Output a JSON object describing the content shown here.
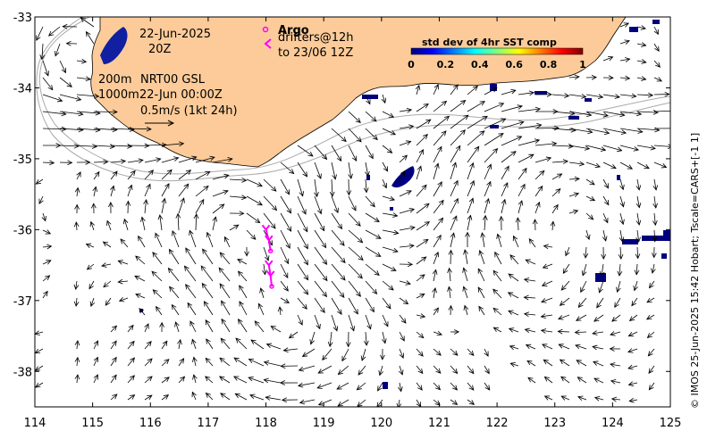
{
  "map": {
    "lon_range": [
      114,
      125
    ],
    "lat_range": [
      -38.5,
      -33
    ],
    "x_ticks": [
      "114",
      "115",
      "116",
      "117",
      "118",
      "119",
      "120",
      "121",
      "122",
      "123",
      "124",
      "125"
    ],
    "y_ticks": [
      "-33",
      "-34",
      "-35",
      "-36",
      "-37",
      "-38"
    ],
    "land_color": "#fccb99",
    "ocean_color": "#ffffff",
    "contour_color": "#aaaaaa",
    "argo_color": "#ff00ff"
  },
  "annotations": {
    "date": "22-Jun-2025",
    "time": "20Z",
    "depth_200": "200m",
    "product": "NRT00 GSL",
    "depth_1000": "1000m",
    "valid_time": "22-Jun 00:00Z",
    "scale_label": "0.5m/s (1kt 24h)"
  },
  "legend": {
    "argo_label": "Argo",
    "drifters_label": "drifters@12h",
    "drifters_until": "to 23/06 12Z"
  },
  "colorbar": {
    "title": "std dev of 4hr SST comp",
    "tick_labels": [
      "0",
      "0.2",
      "0.4",
      "0.6",
      "0.8",
      "1"
    ],
    "colors": [
      "#00007f",
      "#0000ff",
      "#007fff",
      "#00ffff",
      "#7fff7f",
      "#ffff00",
      "#ff7f00",
      "#ff0000",
      "#7f0000"
    ]
  },
  "credit": "© IMOS 25-Jun-2025 15:42 Hobart; Tscale=CARS+[-1 1]",
  "drifter_tracks": [
    {
      "points": [
        [
          118.0,
          -36.0
        ],
        [
          118.05,
          -36.15
        ],
        [
          118.08,
          -36.3
        ]
      ]
    },
    {
      "points": [
        [
          118.05,
          -36.5
        ],
        [
          118.08,
          -36.65
        ],
        [
          118.1,
          -36.8
        ]
      ]
    }
  ]
}
